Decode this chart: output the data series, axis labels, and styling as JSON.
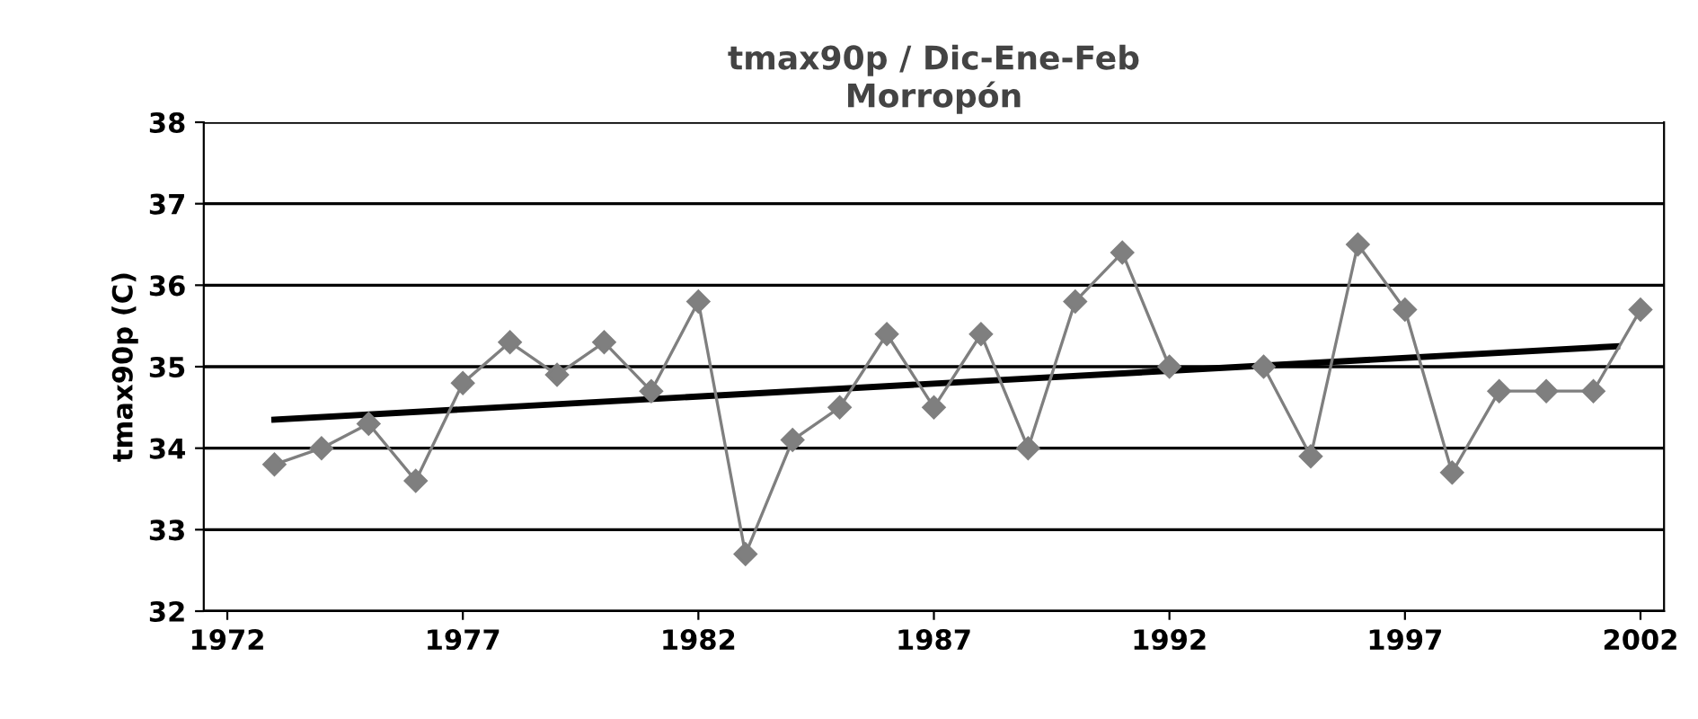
{
  "chart_data": {
    "type": "line",
    "title": "tmax90p / Dic-Ene-Feb\nMorropón",
    "ylabel": "tmax90p (C)",
    "x": [
      1973,
      1974,
      1975,
      1976,
      1977,
      1978,
      1979,
      1980,
      1981,
      1982,
      1983,
      1984,
      1985,
      1986,
      1987,
      1988,
      1989,
      1990,
      1991,
      1992,
      1993,
      1994,
      1995,
      1996,
      1997,
      1998,
      1999,
      2000,
      2001,
      2002
    ],
    "series": [
      {
        "color": "#7f7f7f",
        "marker": "diamond",
        "values": [
          33.8,
          34.0,
          34.3,
          33.6,
          34.8,
          35.3,
          34.9,
          35.3,
          34.7,
          35.8,
          32.7,
          34.1,
          34.5,
          35.4,
          34.5,
          35.4,
          34.0,
          35.8,
          36.4,
          35.0,
          null,
          35.0,
          33.9,
          36.5,
          35.7,
          33.7,
          34.7,
          34.7,
          34.7,
          35.7
        ]
      },
      {
        "type": "line",
        "color": "#000000",
        "marker": "none",
        "x": [
          1973,
          2001.5
        ],
        "values": [
          34.35,
          35.25
        ]
      }
    ],
    "xlim": [
      1971.5,
      2002.5
    ],
    "xticks": [
      1972,
      1977,
      1982,
      1987,
      1992,
      1997,
      2002
    ],
    "ylim": [
      32,
      38
    ],
    "yticks": [
      32,
      33,
      34,
      35,
      36,
      37,
      38
    ],
    "grid": "y",
    "legend": false
  }
}
